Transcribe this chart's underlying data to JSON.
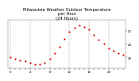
{
  "title": "Milwaukee Weather Outdoor Temperature\nper Hour\n(24 Hours)",
  "hours": [
    0,
    1,
    2,
    3,
    4,
    5,
    6,
    7,
    8,
    9,
    10,
    11,
    12,
    13,
    14,
    15,
    16,
    17,
    18,
    19,
    20,
    21,
    22,
    23
  ],
  "temps": [
    30,
    29,
    28,
    27,
    26,
    25,
    25,
    26,
    29,
    33,
    38,
    44,
    49,
    52,
    54,
    53,
    51,
    47,
    43,
    40,
    37,
    35,
    33,
    32
  ],
  "dot_color_main": "#dd0000",
  "dot_color_alt": "#000000",
  "bg_color": "#ffffff",
  "grid_color": "#999999",
  "title_color": "#000000",
  "tick_color": "#000000",
  "ylim": [
    22,
    58
  ],
  "yticks": [
    30,
    40,
    50
  ],
  "xlim": [
    -0.5,
    23.5
  ],
  "xticks": [
    0,
    1,
    2,
    3,
    4,
    5,
    6,
    7,
    8,
    9,
    10,
    11,
    12,
    13,
    14,
    15,
    16,
    17,
    18,
    19,
    20,
    21,
    22,
    23
  ],
  "vgrid_lines": [
    0,
    4,
    8,
    12,
    16,
    20
  ],
  "title_fontsize": 3.8,
  "tick_fontsize": 2.8,
  "dot_size": 2.5
}
